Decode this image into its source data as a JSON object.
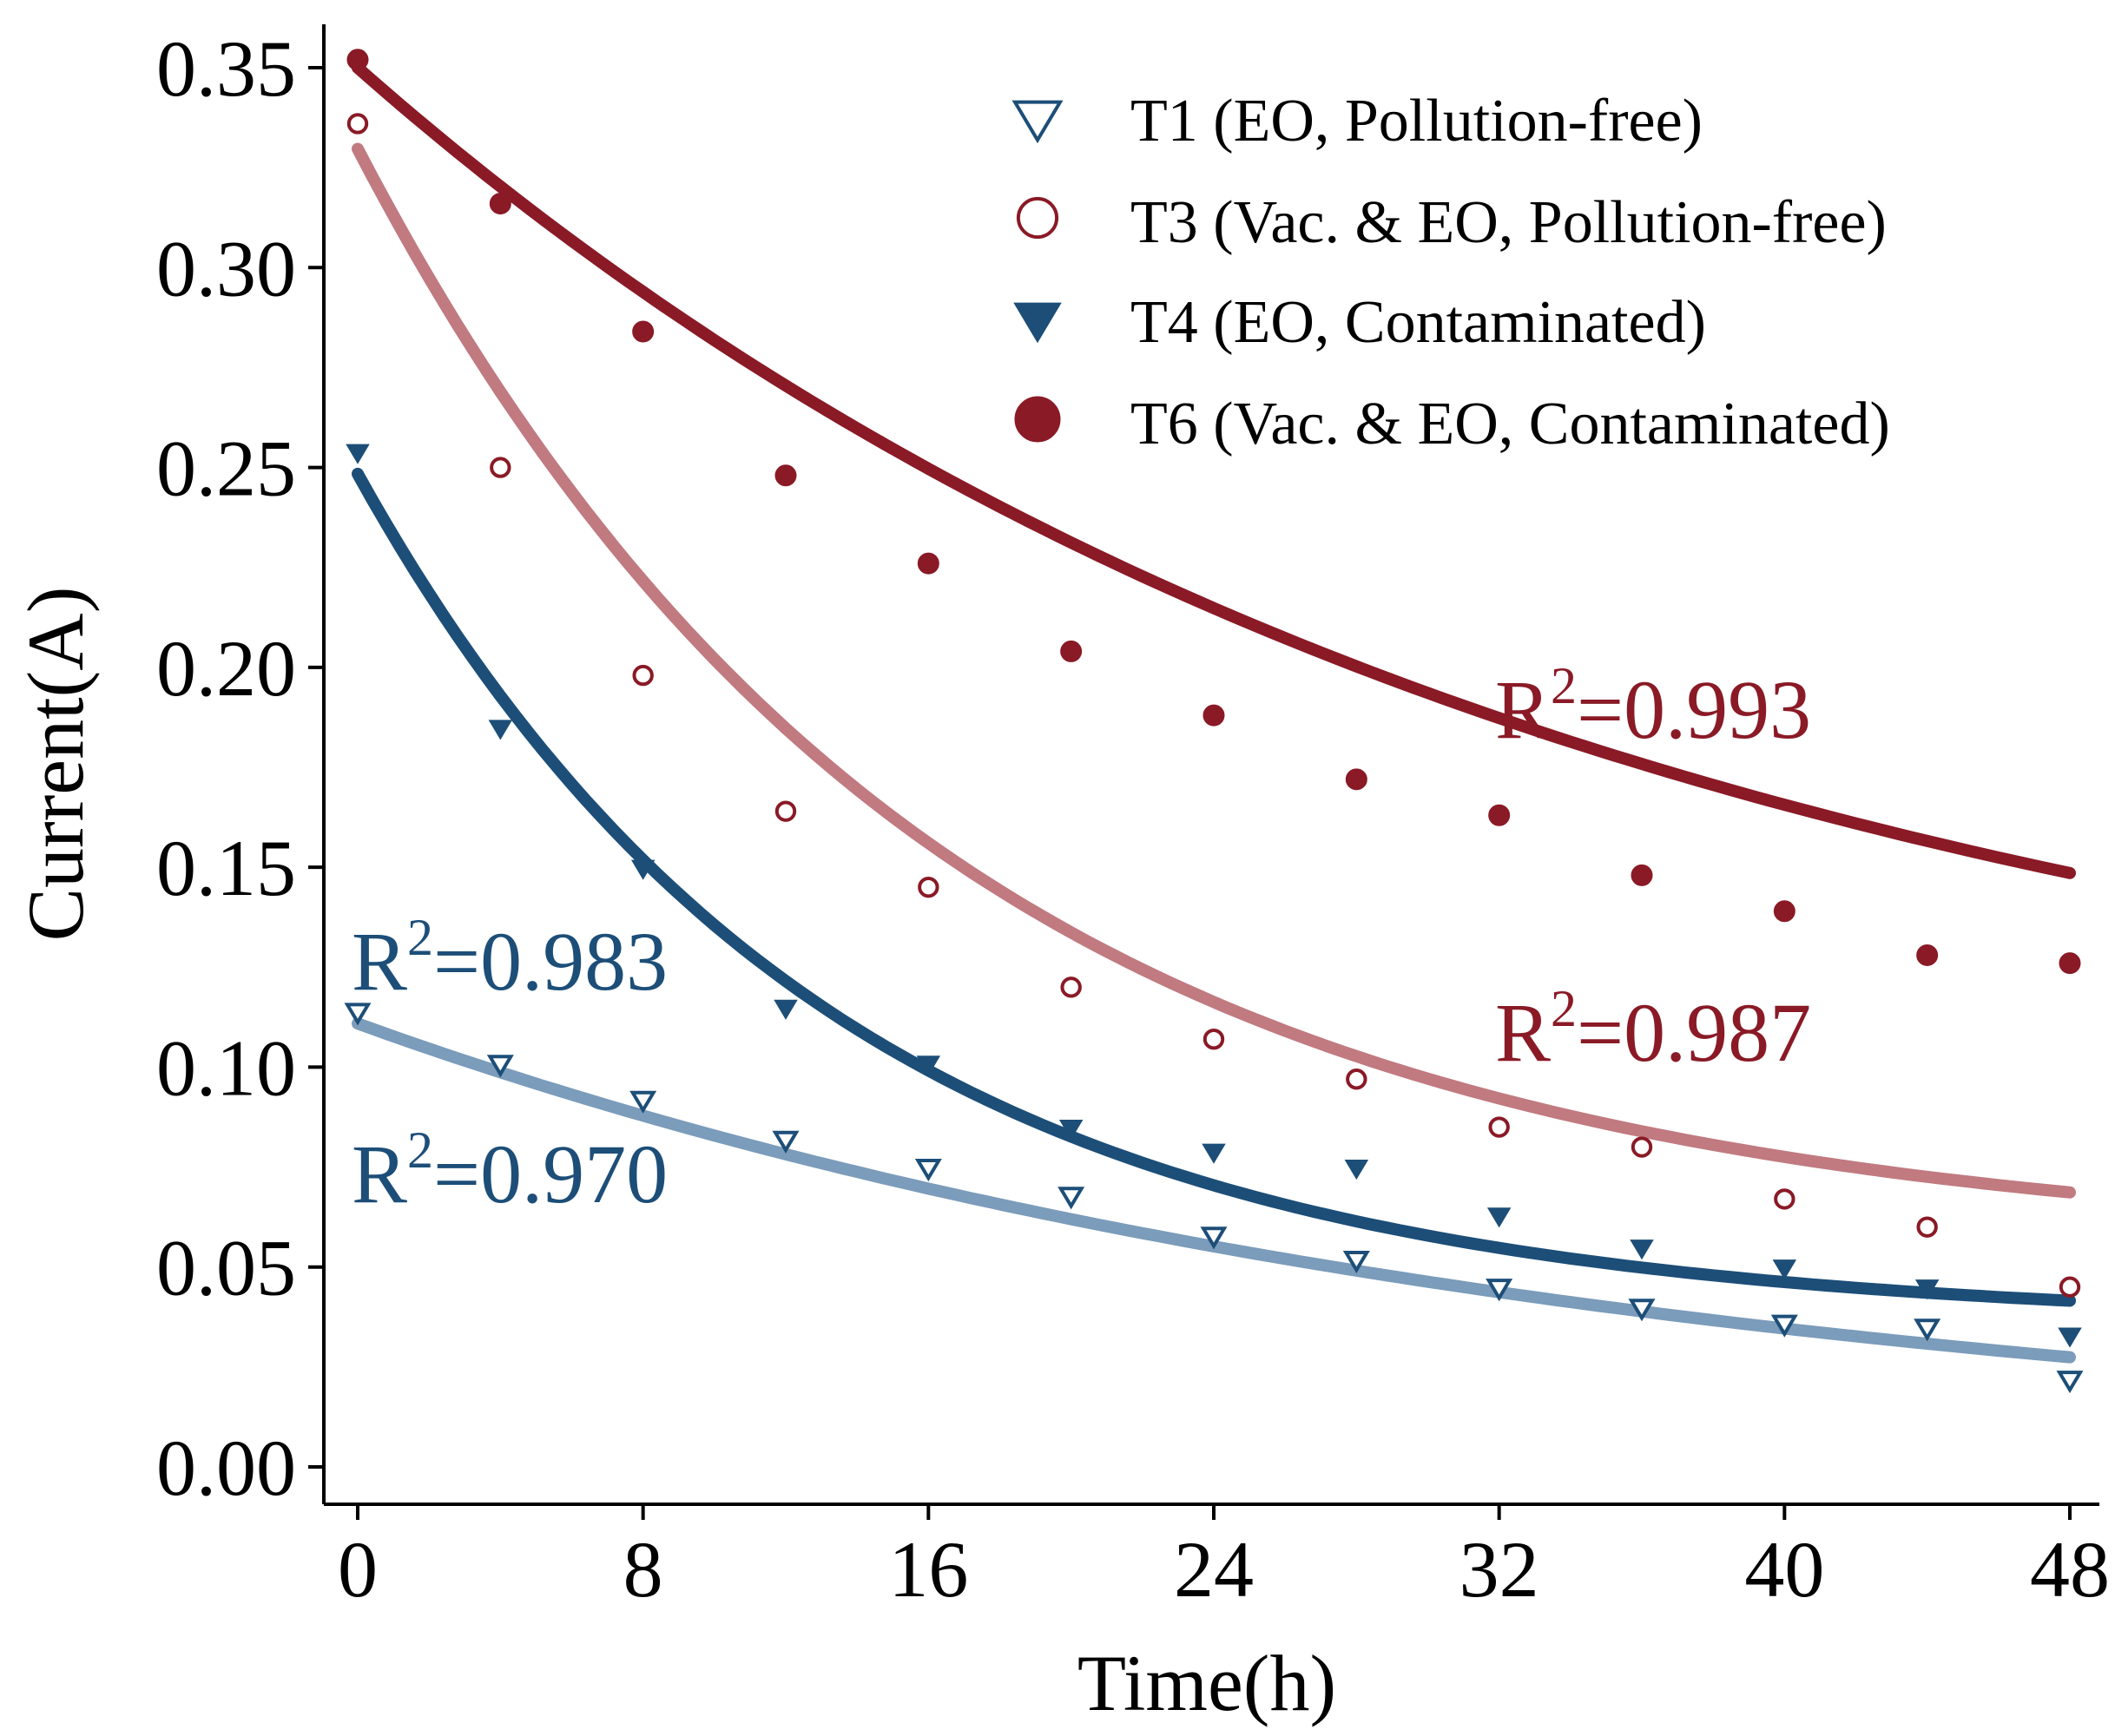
{
  "chart_data": {
    "type": "scatter",
    "title": "",
    "xlabel": "Time(h)",
    "ylabel": "Current(A)",
    "xlim": [
      -1,
      49
    ],
    "ylim": [
      -0.01,
      0.36
    ],
    "xticks": [
      0,
      8,
      16,
      24,
      32,
      40,
      48
    ],
    "xtick_labels": [
      "0",
      "8",
      "16",
      "24",
      "32",
      "40",
      "48"
    ],
    "yticks": [
      0.0,
      0.05,
      0.1,
      0.15,
      0.2,
      0.25,
      0.3,
      0.35
    ],
    "ytick_labels": [
      "0.00",
      "0.05",
      "0.10",
      "0.15",
      "0.20",
      "0.25",
      "0.30",
      "0.35"
    ],
    "grid": false,
    "legend_position": "top-right",
    "series": [
      {
        "id": "T1",
        "name": "T1 (EO, Pollution-free)",
        "marker": "triangle-down-open",
        "color": "#1c4e78",
        "x": [
          0,
          4,
          8,
          12,
          16,
          20,
          24,
          28,
          32,
          36,
          40,
          44,
          48
        ],
        "y": [
          0.114,
          0.101,
          0.092,
          0.082,
          0.075,
          0.068,
          0.058,
          0.052,
          0.045,
          0.04,
          0.036,
          0.035,
          0.022
        ],
        "fit": {
          "a": 0.1109,
          "b": 0.0291,
          "c": 0.0
        },
        "r2_label": "R",
        "r2_sup": "2",
        "r2_value": "=0.970",
        "fit_color": "#7b9cba"
      },
      {
        "id": "T3",
        "name": "T3 (Vac. & EO, Pollution-free)",
        "marker": "circle-open",
        "color": "#8a1a26",
        "x": [
          0,
          4,
          8,
          12,
          16,
          20,
          24,
          28,
          32,
          36,
          40,
          44,
          48
        ],
        "y": [
          0.336,
          0.25,
          0.198,
          0.164,
          0.145,
          0.12,
          0.107,
          0.097,
          0.085,
          0.08,
          0.067,
          0.06,
          0.045
        ],
        "fit": {
          "a": 0.2747,
          "b": 0.0625,
          "c": 0.055
        },
        "r2_label": "R",
        "r2_sup": "2",
        "r2_value": "=0.987",
        "fit_color": "#c07a80"
      },
      {
        "id": "T4",
        "name": "T4 (EO, Contaminated)",
        "marker": "triangle-down-filled",
        "color": "#1c4e78",
        "x": [
          0,
          4,
          8,
          12,
          16,
          20,
          24,
          28,
          32,
          36,
          40,
          44,
          48
        ],
        "y": [
          0.254,
          0.185,
          0.15,
          0.115,
          0.101,
          0.085,
          0.079,
          0.075,
          0.063,
          0.055,
          0.05,
          0.045,
          0.033
        ],
        "fit": {
          "a": 0.2124,
          "b": 0.0758,
          "c": 0.036
        },
        "r2_label": "R",
        "r2_sup": "2",
        "r2_value": "=0.983",
        "fit_color": "#1c4e78"
      },
      {
        "id": "T6",
        "name": "T6 (Vac. & EO, Contaminated)",
        "marker": "circle-filled",
        "color": "#8a1a26",
        "x": [
          0,
          4,
          8,
          12,
          16,
          20,
          24,
          28,
          32,
          36,
          40,
          44,
          48
        ],
        "y": [
          0.352,
          0.316,
          0.284,
          0.248,
          0.226,
          0.204,
          0.188,
          0.172,
          0.163,
          0.148,
          0.139,
          0.128,
          0.126
        ],
        "fit": {
          "a": 0.2652,
          "b": 0.0297,
          "c": 0.0848
        },
        "r2_label": "R",
        "r2_sup": "2",
        "r2_value": "=0.993",
        "fit_color": "#8a1a26"
      }
    ]
  }
}
